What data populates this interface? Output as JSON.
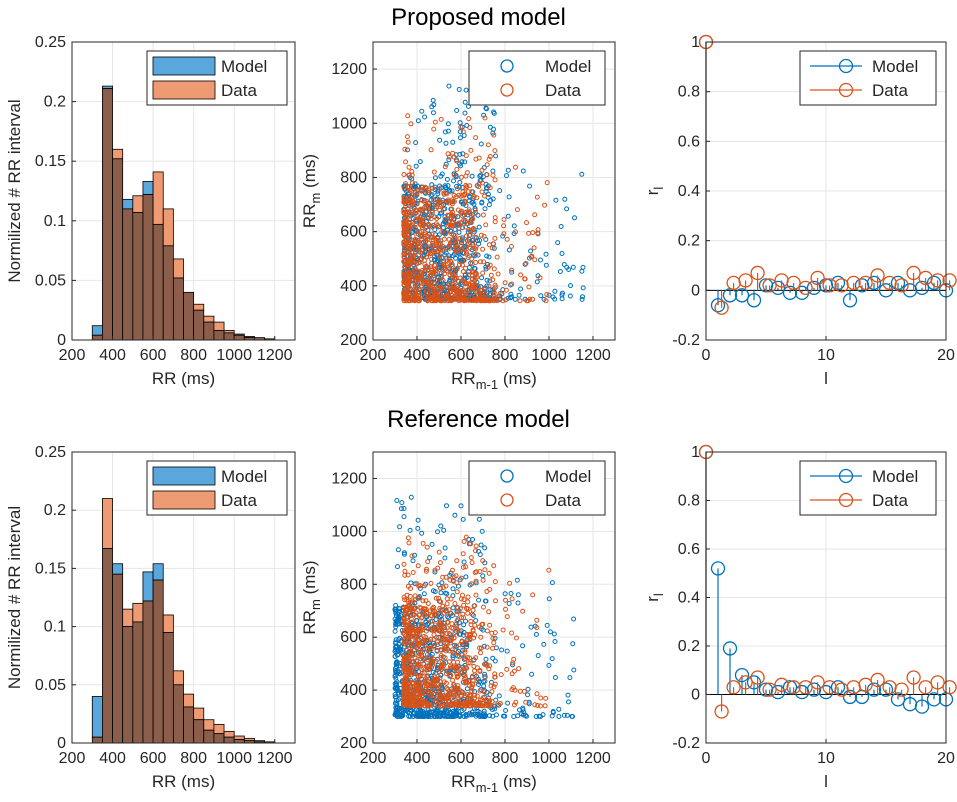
{
  "figure": {
    "rows": [
      {
        "title": "Proposed model"
      },
      {
        "title": "Reference model"
      }
    ]
  },
  "colors": {
    "model": "#0072BD",
    "data": "#D95319",
    "overlap": "#8B5E4C",
    "model_fill": "#5AA7DE",
    "data_fill": "#EE9A73"
  },
  "chart_data": [
    {
      "id": "hist-proposed",
      "type": "bar",
      "subtype": "overlaid-histogram",
      "title": "",
      "xlabel": "RR (ms)",
      "ylabel": "Normilized # RR interval",
      "xlim": [
        200,
        1300
      ],
      "ylim": [
        0,
        0.25
      ],
      "xticks": [
        "200",
        "400",
        "600",
        "800",
        "1000",
        "1200"
      ],
      "yticks": [
        "0",
        "0.05",
        "0.1",
        "0.15",
        "0.2",
        "0.25"
      ],
      "xticks_values": [
        200,
        400,
        600,
        800,
        1000,
        1200
      ],
      "yticks_values": [
        0,
        0.05,
        0.1,
        0.15,
        0.2,
        0.25
      ],
      "bin_edges": [
        300,
        350,
        400,
        450,
        500,
        550,
        600,
        650,
        700,
        750,
        800,
        850,
        900,
        950,
        1000,
        1050,
        1100,
        1150,
        1200
      ],
      "series": [
        {
          "name": "Model",
          "values": [
            0.012,
            0.213,
            0.152,
            0.118,
            0.107,
            0.133,
            0.097,
            0.079,
            0.052,
            0.04,
            0.025,
            0.015,
            0.008,
            0.006,
            0.004,
            0.002,
            0.002,
            0.001
          ]
        },
        {
          "name": "Data",
          "values": [
            0.004,
            0.211,
            0.16,
            0.11,
            0.121,
            0.122,
            0.141,
            0.11,
            0.068,
            0.04,
            0.03,
            0.02,
            0.015,
            0.008,
            0.005,
            0.003,
            0.002,
            0.001
          ]
        }
      ],
      "legend": [
        "Model",
        "Data"
      ],
      "legend_position": "top-right",
      "grid": true
    },
    {
      "id": "scatter-proposed",
      "type": "scatter",
      "title": "",
      "xlabel": "RR",
      "xlabel_sub": "m-1",
      "xlabel_unit": " (ms)",
      "ylabel": "RR",
      "ylabel_sub": "m",
      "ylabel_unit": " (ms)",
      "xlim": [
        200,
        1300
      ],
      "ylim": [
        200,
        1300
      ],
      "xticks": [
        "200",
        "400",
        "600",
        "800",
        "1000",
        "1200"
      ],
      "yticks": [
        "200",
        "400",
        "600",
        "800",
        "1000",
        "1200"
      ],
      "xticks_values": [
        200,
        400,
        600,
        800,
        1000,
        1200
      ],
      "yticks_values": [
        200,
        400,
        600,
        800,
        1000,
        1200
      ],
      "series": [
        {
          "name": "Model",
          "n": 850,
          "x_range": [
            340,
            1160
          ],
          "y_range": [
            345,
            1140
          ],
          "y_floor": 350,
          "seed": 11
        },
        {
          "name": "Data",
          "n": 850,
          "x_range": [
            340,
            1000
          ],
          "y_range": [
            345,
            1030
          ],
          "y_floor": 345,
          "seed": 23
        }
      ],
      "legend": [
        "Model",
        "Data"
      ],
      "legend_position": "top-right",
      "grid": true
    },
    {
      "id": "acf-proposed",
      "type": "stem",
      "title": "",
      "xlabel": "l",
      "ylabel": "r",
      "ylabel_sub": "l",
      "xlim": [
        0,
        20
      ],
      "ylim": [
        -0.2,
        1
      ],
      "xticks": [
        "0",
        "10",
        "20"
      ],
      "yticks": [
        "-0.2",
        "0",
        "0.2",
        "0.4",
        "0.6",
        "0.8",
        "1"
      ],
      "xticks_values": [
        0,
        10,
        20
      ],
      "yticks_values": [
        -0.2,
        0,
        0.2,
        0.4,
        0.6,
        0.8,
        1
      ],
      "x": [
        0,
        1,
        2,
        3,
        4,
        5,
        6,
        7,
        8,
        9,
        10,
        11,
        12,
        13,
        14,
        15,
        16,
        17,
        18,
        19,
        20
      ],
      "series": [
        {
          "name": "Model",
          "values": [
            1,
            -0.06,
            -0.02,
            -0.02,
            -0.04,
            0.02,
            0.01,
            -0.01,
            -0.01,
            0.01,
            0.02,
            0.03,
            -0.04,
            0.02,
            0.03,
            0.0,
            0.03,
            0.0,
            0.01,
            0.03,
            0.0
          ]
        },
        {
          "name": "Data",
          "values": [
            1,
            -0.07,
            0.03,
            0.04,
            0.07,
            0.02,
            0.04,
            0.03,
            0.01,
            0.05,
            0.02,
            0.02,
            0.03,
            0.03,
            0.06,
            0.03,
            0.02,
            0.07,
            0.05,
            0.04,
            0.04
          ]
        }
      ],
      "legend": [
        "Model",
        "Data"
      ],
      "legend_position": "top-right",
      "grid": true
    },
    {
      "id": "hist-reference",
      "type": "bar",
      "subtype": "overlaid-histogram",
      "title": "",
      "xlabel": "RR (ms)",
      "ylabel": "Normilized # RR interval",
      "xlim": [
        200,
        1300
      ],
      "ylim": [
        0,
        0.25
      ],
      "xticks": [
        "200",
        "400",
        "600",
        "800",
        "1000",
        "1200"
      ],
      "yticks": [
        "0",
        "0.05",
        "0.1",
        "0.15",
        "0.2",
        "0.25"
      ],
      "xticks_values": [
        200,
        400,
        600,
        800,
        1000,
        1200
      ],
      "yticks_values": [
        0,
        0.05,
        0.1,
        0.15,
        0.2,
        0.25
      ],
      "bin_edges": [
        300,
        350,
        400,
        450,
        500,
        550,
        600,
        650,
        700,
        750,
        800,
        850,
        900,
        950,
        1000,
        1050,
        1100,
        1150,
        1200
      ],
      "series": [
        {
          "name": "Model",
          "values": [
            0.04,
            0.167,
            0.154,
            0.1,
            0.104,
            0.147,
            0.154,
            0.095,
            0.05,
            0.031,
            0.02,
            0.011,
            0.008,
            0.005,
            0.003,
            0.002,
            0.001,
            0.001
          ]
        },
        {
          "name": "Data",
          "values": [
            0.005,
            0.21,
            0.145,
            0.115,
            0.12,
            0.122,
            0.14,
            0.11,
            0.062,
            0.042,
            0.03,
            0.02,
            0.016,
            0.01,
            0.006,
            0.004,
            0.002,
            0.001
          ]
        }
      ],
      "legend": [
        "Model",
        "Data"
      ],
      "legend_position": "top-right",
      "grid": true
    },
    {
      "id": "scatter-reference",
      "type": "scatter",
      "title": "",
      "xlabel": "RR",
      "xlabel_sub": "m-1",
      "xlabel_unit": " (ms)",
      "ylabel": "RR",
      "ylabel_sub": "m",
      "ylabel_unit": " (ms)",
      "xlim": [
        200,
        1300
      ],
      "ylim": [
        200,
        1300
      ],
      "xticks": [
        "200",
        "400",
        "600",
        "800",
        "1000",
        "1200"
      ],
      "yticks": [
        "200",
        "400",
        "600",
        "800",
        "1000",
        "1200"
      ],
      "xticks_values": [
        200,
        400,
        600,
        800,
        1000,
        1200
      ],
      "yticks_values": [
        200,
        400,
        600,
        800,
        1000,
        1200
      ],
      "series": [
        {
          "name": "Model",
          "n": 850,
          "x_range": [
            300,
            1120
          ],
          "y_range": [
            295,
            1130
          ],
          "y_floor": 300,
          "seed": 37
        },
        {
          "name": "Data",
          "n": 850,
          "x_range": [
            340,
            1000
          ],
          "y_range": [
            340,
            980
          ],
          "y_floor": 340,
          "seed": 53
        }
      ],
      "legend": [
        "Model",
        "Data"
      ],
      "legend_position": "top-right",
      "grid": true
    },
    {
      "id": "acf-reference",
      "type": "stem",
      "title": "",
      "xlabel": "l",
      "ylabel": "r",
      "ylabel_sub": "l",
      "xlim": [
        0,
        20
      ],
      "ylim": [
        -0.2,
        1
      ],
      "xticks": [
        "0",
        "10",
        "20"
      ],
      "yticks": [
        "-0.2",
        "0",
        "0.2",
        "0.4",
        "0.6",
        "0.8",
        "1"
      ],
      "xticks_values": [
        0,
        10,
        20
      ],
      "yticks_values": [
        -0.2,
        0,
        0.2,
        0.4,
        0.6,
        0.8,
        1
      ],
      "x": [
        0,
        1,
        2,
        3,
        4,
        5,
        6,
        7,
        8,
        9,
        10,
        11,
        12,
        13,
        14,
        15,
        16,
        17,
        18,
        19,
        20
      ],
      "series": [
        {
          "name": "Model",
          "values": [
            1,
            0.52,
            0.19,
            0.08,
            0.05,
            0.02,
            0.01,
            0.03,
            0.01,
            0.02,
            0.01,
            0.03,
            -0.01,
            -0.01,
            0.02,
            0.02,
            -0.02,
            -0.04,
            -0.05,
            -0.02,
            -0.02
          ]
        },
        {
          "name": "Data",
          "values": [
            1,
            -0.07,
            0.03,
            0.05,
            0.07,
            0.02,
            0.04,
            0.03,
            0.03,
            0.05,
            0.03,
            0.02,
            0.03,
            0.04,
            0.06,
            0.03,
            0.02,
            0.07,
            0.03,
            0.05,
            0.03
          ]
        }
      ],
      "legend": [
        "Model",
        "Data"
      ],
      "legend_position": "top-right",
      "grid": true
    }
  ]
}
